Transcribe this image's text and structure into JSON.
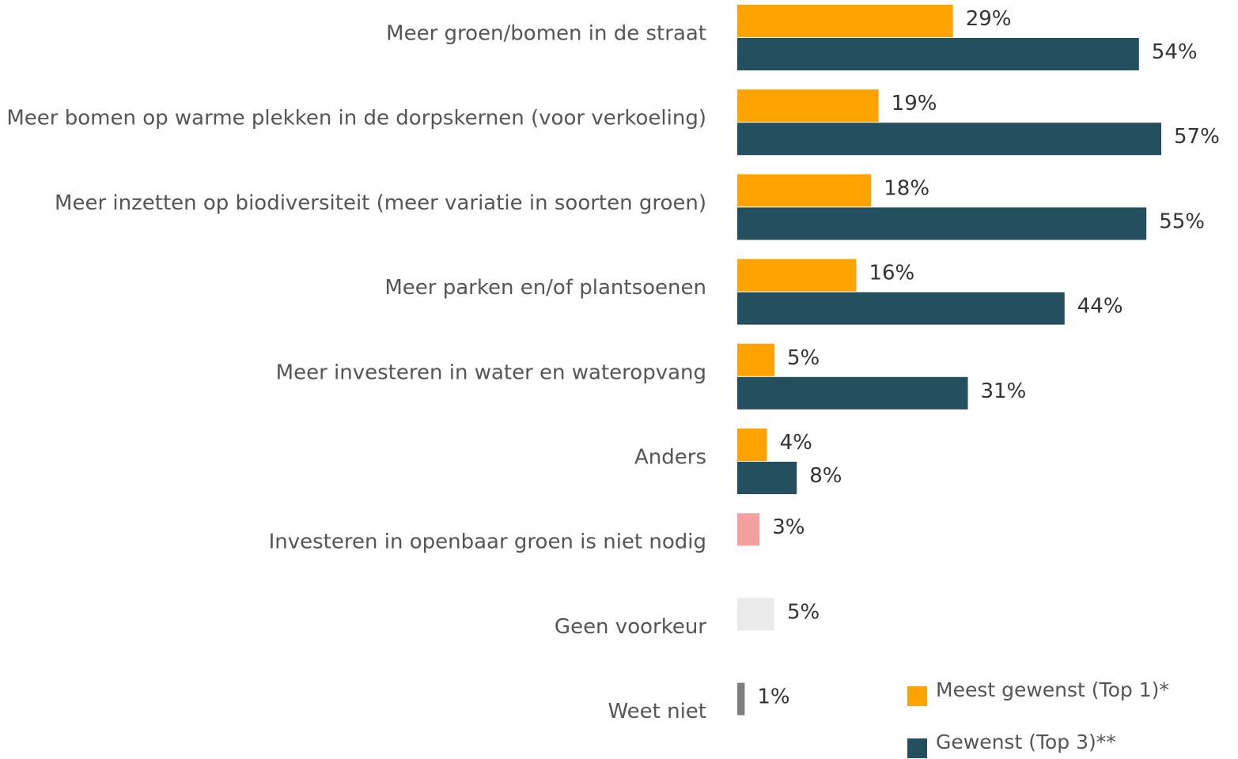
{
  "chart_data": {
    "type": "bar",
    "orientation": "horizontal",
    "categories": [
      "Meer groen/bomen in de straat",
      "Meer bomen op warme plekken in de dorpskernen (voor verkoeling)",
      "Meer inzetten op biodiversiteit (meer variatie in soorten groen)",
      "Meer parken en/of plantsoenen",
      "Meer investeren in water en wateropvang",
      "Anders",
      "Investeren in openbaar groen is niet nodig",
      "Geen voorkeur",
      "Weet niet"
    ],
    "series": [
      {
        "name": "Meest gewenst (Top 1)*",
        "color": "#ffa300",
        "colors": [
          "#ffa300",
          "#ffa300",
          "#ffa300",
          "#ffa300",
          "#ffa300",
          "#ffa300",
          "#f4a0a0",
          "#ebebeb",
          "#7f7f7f"
        ],
        "values": [
          29,
          19,
          18,
          16,
          5,
          4,
          3,
          5,
          1
        ],
        "value_labels": [
          "29%",
          "19%",
          "18%",
          "16%",
          "5%",
          "4%",
          "3%",
          "5%",
          "1%"
        ]
      },
      {
        "name": "Gewenst (Top 3)**",
        "color": "#234f5e",
        "values": [
          54,
          57,
          55,
          44,
          31,
          8,
          null,
          null,
          null
        ],
        "value_labels": [
          "54%",
          "57%",
          "55%",
          "44%",
          "31%",
          "8%",
          null,
          null,
          null
        ]
      }
    ],
    "legend": "bottom-right"
  }
}
